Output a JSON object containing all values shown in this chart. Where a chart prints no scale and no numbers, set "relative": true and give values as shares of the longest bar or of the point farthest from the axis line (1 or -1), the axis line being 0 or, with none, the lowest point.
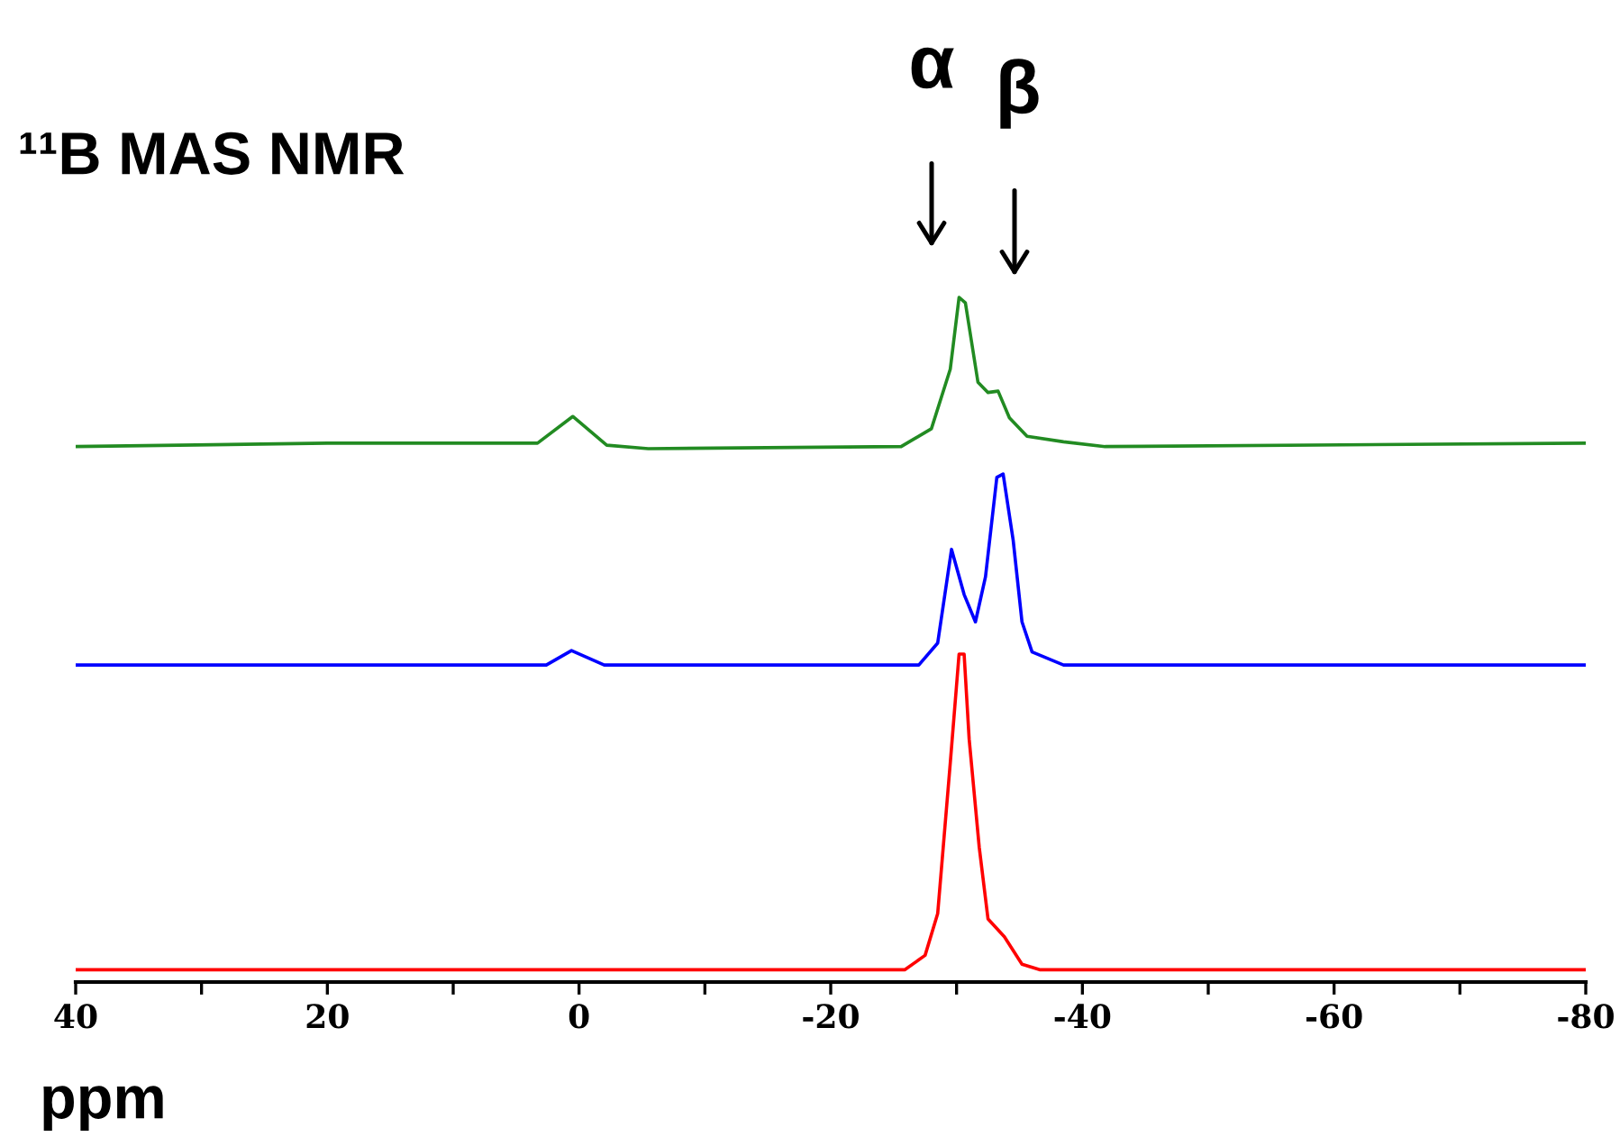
{
  "chart_data": {
    "type": "line",
    "title": "¹¹B MAS NMR",
    "xlabel": "ppm",
    "relative": true,
    "xlim": [
      40,
      -80
    ],
    "xticks": [
      40,
      {
        "value": 30,
        "label": null
      },
      20,
      {
        "value": 10,
        "label": null
      },
      0,
      {
        "value": -10,
        "label": null
      },
      -20,
      {
        "value": -30,
        "label": null
      },
      -40,
      {
        "value": -50,
        "label": null
      },
      -60,
      {
        "value": -70,
        "label": null
      },
      -80
    ],
    "grid": false,
    "legend": false,
    "marker": "none",
    "line_style": "solid",
    "series": [
      {
        "color": "#ff0000",
        "x": [
          40,
          -25.9,
          -27.5,
          -28.5,
          -29.5,
          -30.2,
          -30.6,
          -31.0,
          -31.8,
          -32.5,
          -33.8,
          -35.2,
          -36.6,
          -80
        ],
        "values": [
          0.018,
          0.018,
          0.039,
          0.1,
          0.32,
          0.479,
          0.479,
          0.355,
          0.197,
          0.092,
          0.066,
          0.026,
          0.018,
          0.018
        ]
      },
      {
        "color": "#0000ff",
        "x": [
          40,
          2.6,
          0.6,
          -2.0,
          -27.0,
          -28.5,
          -29.6,
          -30.6,
          -31.5,
          -32.3,
          -33.2,
          -33.7,
          -34.5,
          -35.2,
          -36.0,
          -38.5,
          -80
        ],
        "values": [
          0.463,
          0.463,
          0.484,
          0.463,
          0.463,
          0.495,
          0.632,
          0.566,
          0.526,
          0.592,
          0.737,
          0.742,
          0.645,
          0.526,
          0.482,
          0.463,
          0.463
        ]
      },
      {
        "color": "#228b22",
        "x": [
          40,
          20,
          3.3,
          0.5,
          -2.2,
          -5.5,
          -25.6,
          -28.0,
          -29.5,
          -30.2,
          -30.7,
          -31.7,
          -32.5,
          -33.3,
          -34.2,
          -35.6,
          -38.5,
          -41.8,
          -80
        ],
        "values": [
          0.782,
          0.787,
          0.787,
          0.826,
          0.784,
          0.779,
          0.782,
          0.808,
          0.895,
          1.0,
          0.992,
          0.876,
          0.861,
          0.863,
          0.824,
          0.797,
          0.789,
          0.782,
          0.787
        ]
      }
    ],
    "annotations": [
      "α",
      "β"
    ]
  }
}
